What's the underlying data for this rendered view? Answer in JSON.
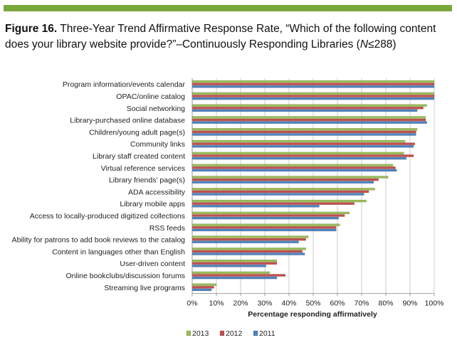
{
  "figure": {
    "number": "Figure 16.",
    "title_text": " Three-Year Trend Affirmative Response Rate, “Which of the following content does your library website provide?”–Continuously Responding Libraries (",
    "n_var": "N",
    "n_value": "≤288)"
  },
  "chart_data": {
    "type": "bar",
    "orientation": "horizontal",
    "xlabel": "Percentage responding affirmatively",
    "xlim": [
      0,
      100
    ],
    "x_ticks": [
      "0%",
      "10%",
      "20%",
      "30%",
      "40%",
      "50%",
      "60%",
      "70%",
      "80%",
      "90%",
      "100%"
    ],
    "grid": "vertical",
    "legend_position": "bottom",
    "categories": [
      "Program information/events calendar",
      "OPAC/online catalog",
      "Social networking",
      "Library-purchased online database",
      "Children/young adult page(s)",
      "Community links",
      "Library staff created content",
      "Virtual reference services",
      "Library friends' page(s)",
      "ADA accessibility",
      "Library mobile apps",
      "Access to locally-produced digitized collections",
      "RSS feeds",
      "Ability for patrons to add book reviews to the catalog",
      "Content in languages other than English",
      "User-driven content",
      "Online bookclubs/discussion forums",
      "Streaming live programs"
    ],
    "series": [
      {
        "name": "2013",
        "color": "#9bbb59",
        "values": [
          100,
          100,
          97,
          96.5,
          93,
          88,
          87.5,
          83,
          81,
          75.5,
          72,
          65,
          61,
          48,
          47,
          35,
          32,
          10
        ]
      },
      {
        "name": "2012",
        "color": "#c0504d",
        "values": [
          100,
          100,
          95.5,
          96.5,
          92.5,
          92,
          91.5,
          84,
          77,
          73,
          67,
          63,
          59.5,
          47,
          45.5,
          35,
          38.5,
          9
        ]
      },
      {
        "name": "2011",
        "color": "#4f81bd",
        "values": [
          100,
          100,
          93,
          97,
          92.5,
          91.5,
          88.5,
          84.5,
          75,
          71,
          52.5,
          60.5,
          59.5,
          44,
          46.5,
          30.5,
          35,
          8
        ]
      }
    ]
  }
}
